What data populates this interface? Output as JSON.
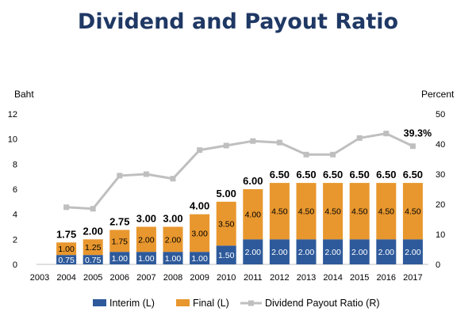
{
  "chart_data": {
    "type": "bar",
    "title": "Dividend and Payout Ratio",
    "left_axis_unit": "Baht",
    "right_axis_unit": "Percent",
    "categories": [
      "2003",
      "2004",
      "2005",
      "2006",
      "2007",
      "2008",
      "2009",
      "2010",
      "2011",
      "2012",
      "2013",
      "2014",
      "2015",
      "2016",
      "2017"
    ],
    "y_left": {
      "min": 0,
      "max": 12,
      "ticks": [
        0,
        2,
        4,
        6,
        8,
        10,
        12
      ]
    },
    "y_right": {
      "min": 0,
      "max": 50,
      "ticks": [
        0,
        10,
        20,
        30,
        40,
        50
      ]
    },
    "series": [
      {
        "name": "Interim (L)",
        "kind": "stacked-bar",
        "axis": "left",
        "color": "#2e5a9b",
        "values": [
          null,
          0.75,
          0.75,
          1.0,
          1.0,
          1.0,
          1.0,
          1.5,
          2.0,
          2.0,
          2.0,
          2.0,
          2.0,
          2.0,
          2.0
        ],
        "labels": [
          "",
          "0.75",
          "0.75",
          "1.00",
          "1.00",
          "1.00",
          "1.00",
          "1.50",
          "2.00",
          "2.00",
          "2.00",
          "2.00",
          "2.00",
          "2.00",
          "2.00"
        ]
      },
      {
        "name": "Final (L)",
        "kind": "stacked-bar",
        "axis": "left",
        "color": "#e8972e",
        "values": [
          null,
          1.0,
          1.25,
          1.75,
          2.0,
          2.0,
          3.0,
          3.5,
          4.0,
          4.5,
          4.5,
          4.5,
          4.5,
          4.5,
          4.5
        ],
        "labels": [
          "",
          "1.00",
          "1.25",
          "1.75",
          "2.00",
          "2.00",
          "3.00",
          "3.50",
          "4.00",
          "4.50",
          "4.50",
          "4.50",
          "4.50",
          "4.50",
          "4.50"
        ]
      },
      {
        "name": "Dividend Payout Ratio (R)",
        "kind": "line",
        "axis": "right",
        "color": "#bfbfbf",
        "values": [
          null,
          19,
          18.5,
          29.5,
          30,
          28.5,
          38,
          39.5,
          41,
          40.5,
          36.5,
          36.5,
          42,
          43.5,
          39.3
        ]
      }
    ],
    "totals": [
      "",
      "1.75",
      "2.00",
      "2.75",
      "3.00",
      "3.00",
      "4.00",
      "5.00",
      "6.00",
      "6.50",
      "6.50",
      "6.50",
      "6.50",
      "6.50",
      "6.50"
    ],
    "ratio_annotation": {
      "category": "2017",
      "text": "39.3%"
    },
    "legend": {
      "position": "bottom"
    },
    "grid": false
  }
}
